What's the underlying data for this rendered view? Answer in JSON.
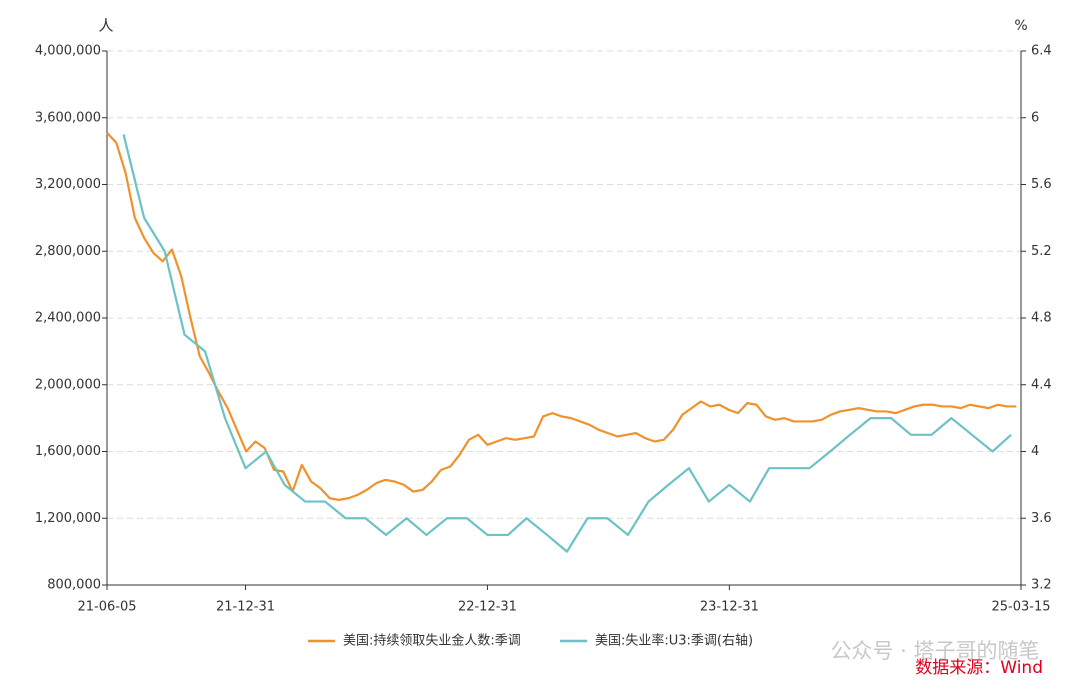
{
  "chart_data": {
    "type": "line",
    "y_label": "人",
    "y2_label": "%",
    "xlim": [
      "21-06-05",
      "25-03-15"
    ],
    "xticks": [
      "21-06-05",
      "21-12-31",
      "22-12-31",
      "23-12-31",
      "25-03-15"
    ],
    "ylim": [
      800000,
      4000000
    ],
    "yticks": [
      {
        "value": 800000,
        "label": "800,000"
      },
      {
        "value": 1200000,
        "label": "1,200,000"
      },
      {
        "value": 1600000,
        "label": "1,600,000"
      },
      {
        "value": 2000000,
        "label": "2,000,000"
      },
      {
        "value": 2400000,
        "label": "2,400,000"
      },
      {
        "value": 2800000,
        "label": "2,800,000"
      },
      {
        "value": 3200000,
        "label": "3,200,000"
      },
      {
        "value": 3600000,
        "label": "3,600,000"
      },
      {
        "value": 4000000,
        "label": "4,000,000"
      }
    ],
    "y2lim": [
      3.2,
      6.4
    ],
    "y2ticks": [
      3.2,
      3.6,
      4,
      4.4,
      4.8,
      5.2,
      5.6,
      6,
      6.4
    ],
    "grid": true,
    "series": [
      {
        "name": "美国:持续领取失业金人数:季调",
        "color": "#f0922b",
        "x": [
          "21-06-05",
          "21-06-19",
          "21-07-03",
          "21-07-17",
          "21-07-31",
          "21-08-14",
          "21-08-28",
          "21-09-11",
          "21-09-25",
          "21-10-09",
          "21-10-23",
          "21-11-06",
          "21-11-20",
          "21-12-04",
          "21-12-18",
          "22-01-01",
          "22-01-15",
          "22-01-29",
          "22-02-12",
          "22-02-26",
          "22-03-12",
          "22-03-26",
          "22-04-09",
          "22-04-23",
          "22-05-07",
          "22-05-21",
          "22-06-04",
          "22-06-18",
          "22-07-02",
          "22-07-16",
          "22-07-30",
          "22-08-13",
          "22-08-27",
          "22-09-10",
          "22-09-24",
          "22-10-08",
          "22-10-22",
          "22-11-05",
          "22-11-19",
          "22-12-03",
          "22-12-17",
          "22-12-31",
          "23-01-14",
          "23-01-28",
          "23-02-11",
          "23-02-25",
          "23-03-11",
          "23-03-25",
          "23-04-08",
          "23-04-22",
          "23-05-06",
          "23-05-20",
          "23-06-03",
          "23-06-17",
          "23-07-01",
          "23-07-15",
          "23-07-29",
          "23-08-12",
          "23-08-26",
          "23-09-09",
          "23-09-23",
          "23-10-07",
          "23-10-21",
          "23-11-04",
          "23-11-18",
          "23-12-02",
          "23-12-16",
          "23-12-30",
          "24-01-13",
          "24-01-27",
          "24-02-10",
          "24-02-24",
          "24-03-09",
          "24-03-23",
          "24-04-06",
          "24-04-20",
          "24-05-04",
          "24-05-18",
          "24-06-01",
          "24-06-15",
          "24-06-29",
          "24-07-13",
          "24-07-27",
          "24-08-10",
          "24-08-24",
          "24-09-07",
          "24-09-21",
          "24-10-05",
          "24-10-19",
          "24-11-02",
          "24-11-16",
          "24-11-30",
          "24-12-14",
          "24-12-28",
          "25-01-11",
          "25-01-25",
          "25-02-08",
          "25-02-22",
          "25-03-08"
        ],
        "values": [
          3510000,
          3450000,
          3270000,
          3000000,
          2880000,
          2790000,
          2740000,
          2810000,
          2650000,
          2400000,
          2170000,
          2070000,
          1960000,
          1860000,
          1730000,
          1600000,
          1660000,
          1620000,
          1490000,
          1480000,
          1360000,
          1520000,
          1420000,
          1380000,
          1320000,
          1310000,
          1320000,
          1340000,
          1370000,
          1410000,
          1430000,
          1420000,
          1400000,
          1360000,
          1370000,
          1420000,
          1490000,
          1510000,
          1580000,
          1670000,
          1700000,
          1640000,
          1660000,
          1680000,
          1670000,
          1680000,
          1690000,
          1810000,
          1830000,
          1810000,
          1800000,
          1780000,
          1760000,
          1730000,
          1710000,
          1690000,
          1700000,
          1710000,
          1680000,
          1660000,
          1670000,
          1730000,
          1820000,
          1860000,
          1900000,
          1870000,
          1880000,
          1850000,
          1830000,
          1890000,
          1880000,
          1810000,
          1790000,
          1800000,
          1780000,
          1780000,
          1780000,
          1790000,
          1820000,
          1840000,
          1850000,
          1860000,
          1850000,
          1840000,
          1840000,
          1830000,
          1850000,
          1870000,
          1880000,
          1880000,
          1870000,
          1870000,
          1860000,
          1880000,
          1870000,
          1860000,
          1880000,
          1870000,
          1870000
        ]
      },
      {
        "name": "美国:失业率:U3:季调(右轴)",
        "color": "#6cc2c5",
        "axis": "y2",
        "x": [
          "21-06-30",
          "21-07-31",
          "21-08-31",
          "21-09-30",
          "21-10-31",
          "21-11-30",
          "21-12-31",
          "22-01-31",
          "22-02-28",
          "22-03-31",
          "22-04-30",
          "22-05-31",
          "22-06-30",
          "22-07-31",
          "22-08-31",
          "22-09-30",
          "22-10-31",
          "22-11-30",
          "22-12-31",
          "23-01-31",
          "23-02-28",
          "23-03-31",
          "23-04-30",
          "23-05-31",
          "23-06-30",
          "23-07-31",
          "23-08-31",
          "23-09-30",
          "23-10-31",
          "23-11-30",
          "23-12-31",
          "24-01-31",
          "24-02-29",
          "24-03-31",
          "24-04-30",
          "24-05-31",
          "24-06-30",
          "24-07-31",
          "24-08-31",
          "24-09-30",
          "24-10-31",
          "24-11-30",
          "24-12-31",
          "25-01-31",
          "25-02-28"
        ],
        "values": [
          5.9,
          5.4,
          5.2,
          4.7,
          4.6,
          4.2,
          3.9,
          4.0,
          3.8,
          3.7,
          3.7,
          3.6,
          3.6,
          3.5,
          3.6,
          3.5,
          3.6,
          3.6,
          3.5,
          3.5,
          3.6,
          3.5,
          3.4,
          3.6,
          3.6,
          3.5,
          3.7,
          3.8,
          3.9,
          3.7,
          3.8,
          3.7,
          3.9,
          3.9,
          3.9,
          4.0,
          4.1,
          4.2,
          4.2,
          4.1,
          4.1,
          4.2,
          4.1,
          4.0,
          4.1
        ]
      }
    ],
    "watermark": "公众号 · 塔子哥的随笔",
    "source": "数据来源：Wind"
  }
}
